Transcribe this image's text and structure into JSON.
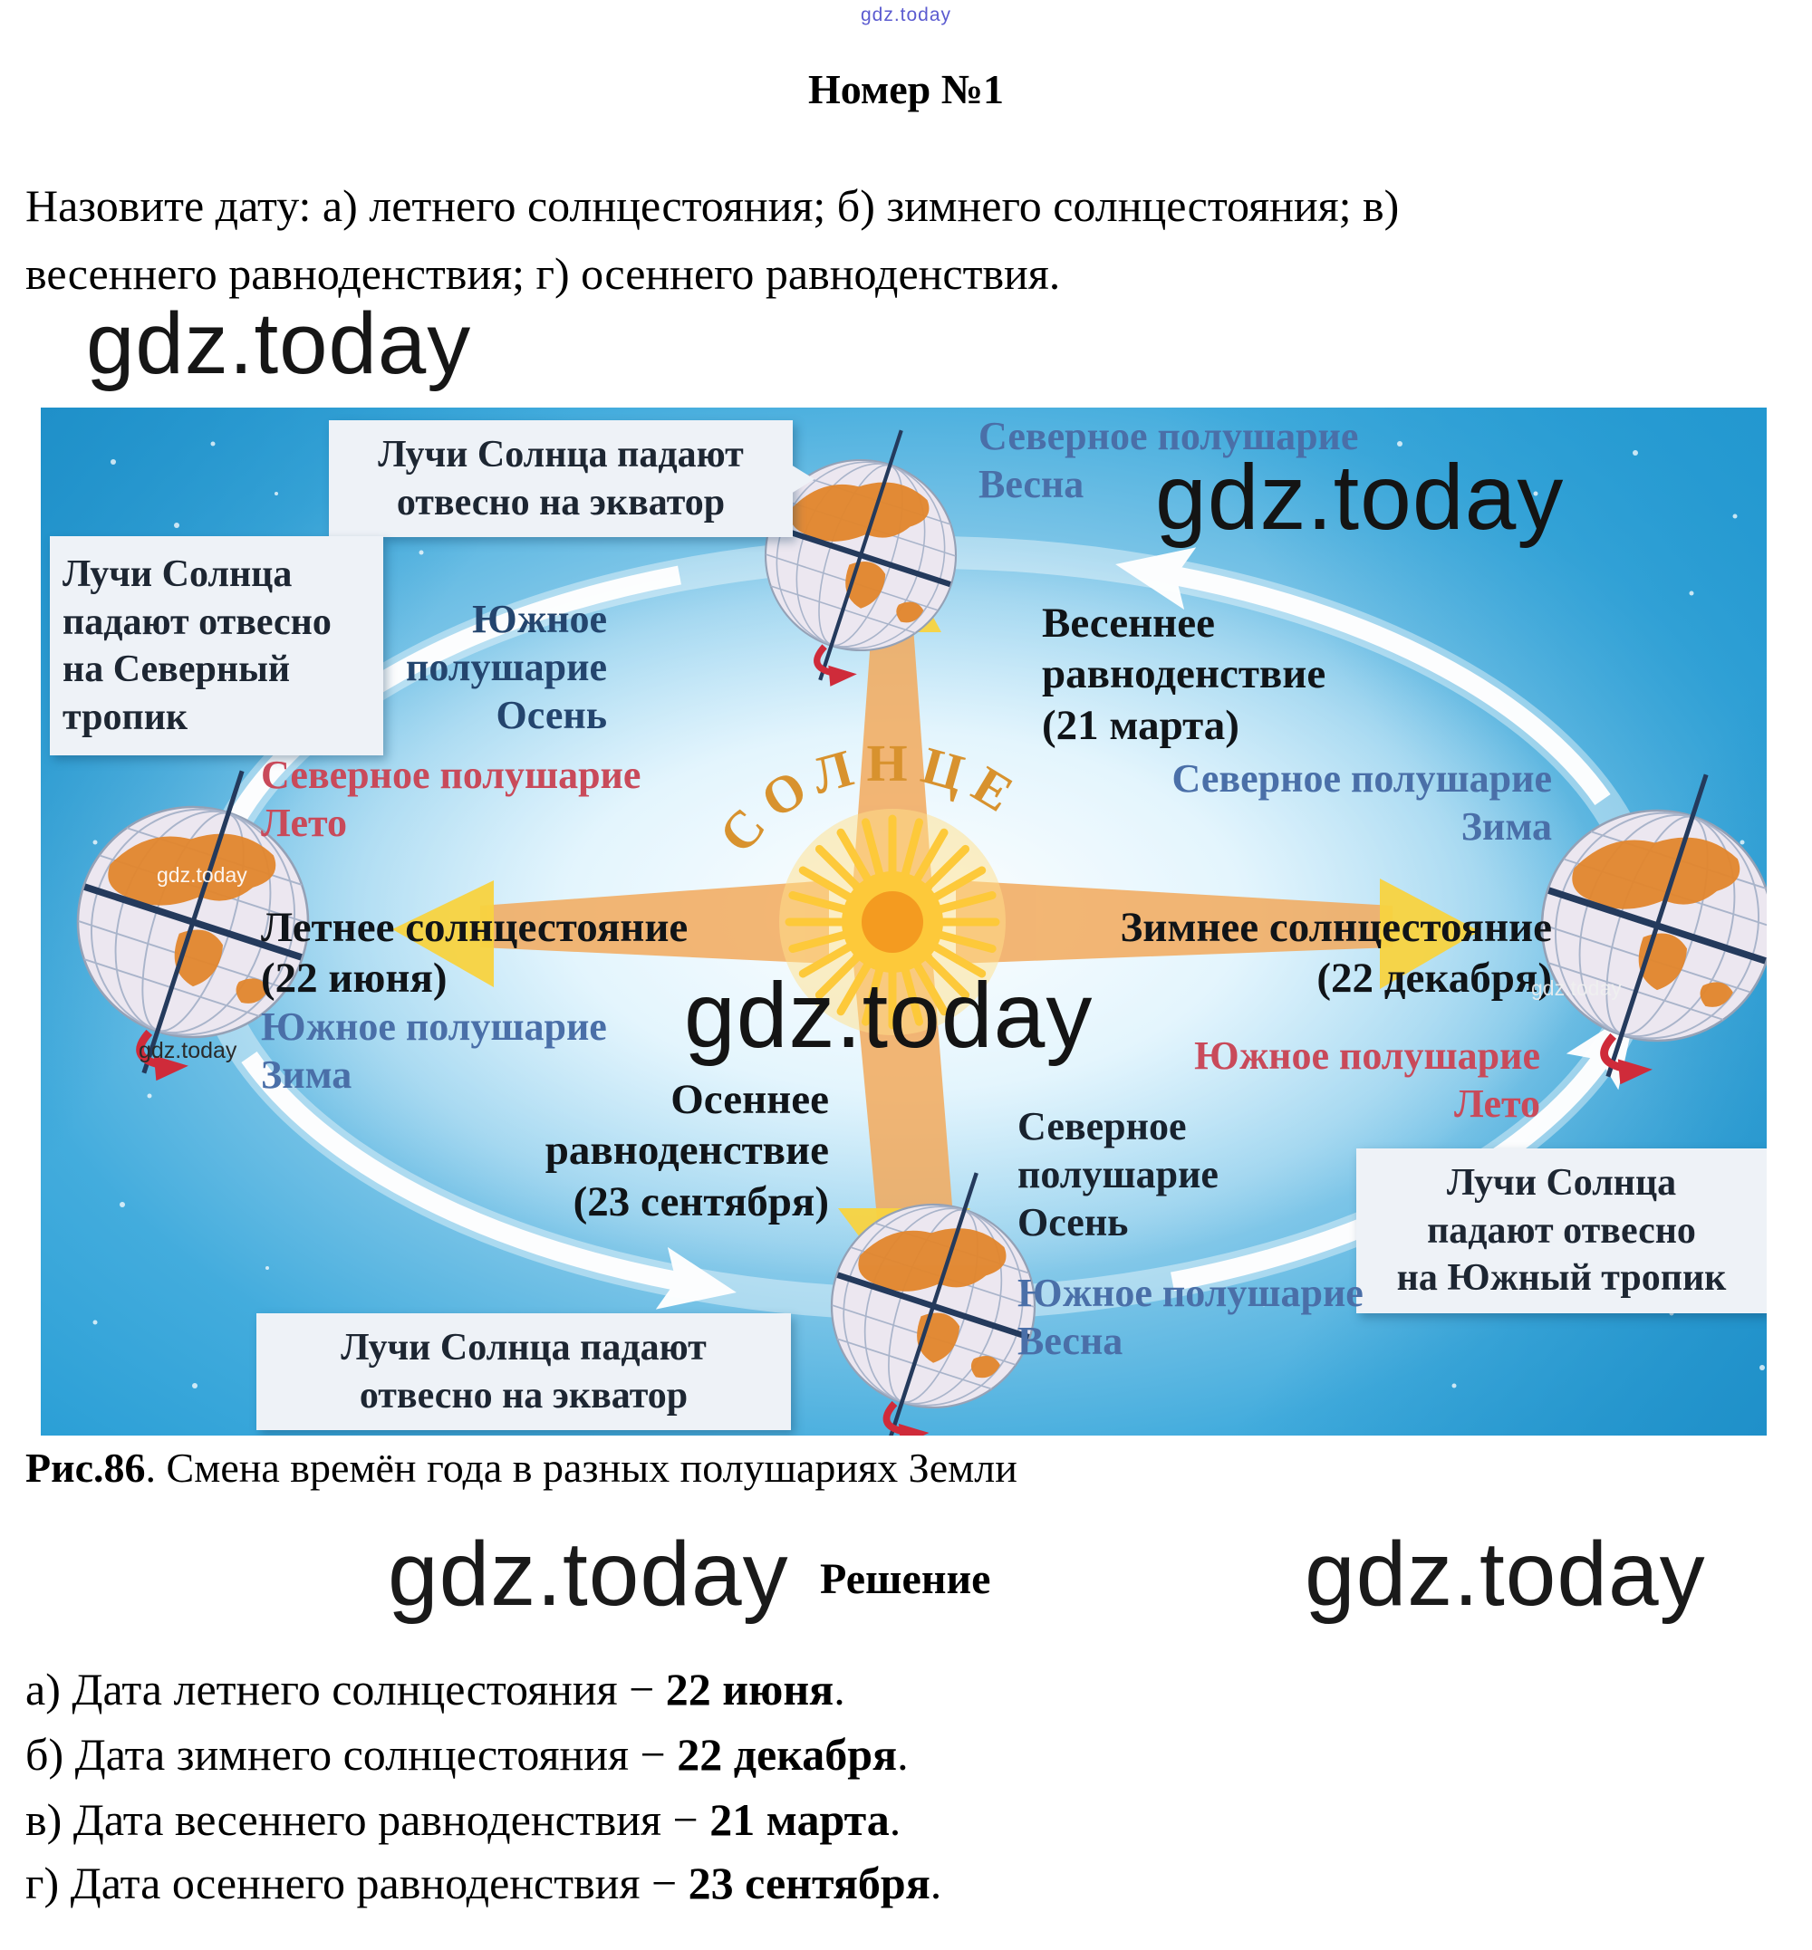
{
  "page": {
    "watermark": "gdz.today",
    "title": "Номер №1",
    "question_lines": [
      "Назовите дату: а) летнего солнцестояния; б) зимнего солнцестояния; в)",
      "весеннего равноденствия; г) осеннего равноденствия."
    ],
    "caption_bold": "Рис.86",
    "caption_rest": ". Смена времён года в разных полушариях Земли",
    "solution_heading": "Решение",
    "answers": [
      {
        "prefix": "а) Дата летнего солнцестояния − ",
        "value": "22 июня",
        "suffix": "."
      },
      {
        "prefix": "б) Дата зимнего солнцестояния − ",
        "value": "22 декабря",
        "suffix": "."
      },
      {
        "prefix": "в) Дата весеннего равноденствия − ",
        "value": "21 марта",
        "suffix": "."
      },
      {
        "prefix": "г) Дата осеннего равноденствия − ",
        "value": "23 сентября",
        "suffix": "."
      }
    ]
  },
  "diagram": {
    "sun_label": "СОЛНЦЕ",
    "labels": {
      "north_spring": [
        "Северное полушарие",
        "Весна"
      ],
      "spring_equinox": [
        "Весеннее",
        "равноденствие",
        "(21 марта)"
      ],
      "south_autumn_top": [
        "Южное",
        "полушарие",
        "Осень"
      ],
      "north_summer": [
        "Северное полушарие",
        "Лето"
      ],
      "summer_solstice": [
        "Летнее солнцестояние",
        "(22 июня)"
      ],
      "south_winter": [
        "Южное полушарие",
        "Зима"
      ],
      "north_winter": [
        "Северное полушарие",
        "Зима"
      ],
      "winter_solstice": [
        "Зимнее солнцестояние",
        "(22 декабря)"
      ],
      "south_summer": [
        "Южное полушарие",
        "Лето"
      ],
      "autumn_equinox": [
        "Осеннее",
        "равноденствие",
        "(23 сентября)"
      ],
      "north_autumn_bottom": [
        "Северное",
        "полушарие",
        "Осень"
      ],
      "south_spring": [
        "Южное полушарие",
        "Весна"
      ]
    },
    "callouts": {
      "top": [
        "Лучи Солнца падают",
        "отвесно на экватор"
      ],
      "left": [
        "Лучи Солнца",
        "падают отвесно",
        "на Северный",
        "тропик"
      ],
      "bottom": [
        "Лучи Солнца падают",
        "отвесно на экватор"
      ],
      "right": [
        "Лучи Солнца",
        "падают отвесно",
        "на Южный тропик"
      ]
    },
    "colors": {
      "background_cyan": "#2b9fd6",
      "beam_orange": "#f2a95c",
      "beam_tip_yellow": "#f8d33f",
      "sun_core": "#f49b20",
      "sun_label_orange": "#d8922e",
      "label_blue": "#4a6fa8",
      "label_navy": "#24456e",
      "label_red": "#c94a5a",
      "continent_orange": "#e2862c",
      "orbit_white": "#ffffff",
      "watermark_blue": "#5b5bd0"
    }
  }
}
